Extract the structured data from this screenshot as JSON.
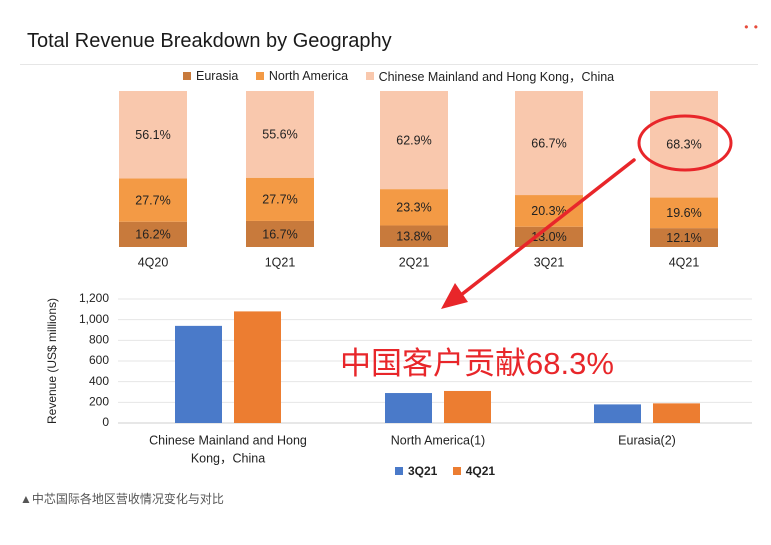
{
  "page": {
    "title": "Total Revenue Breakdown by Geography",
    "callout": "中国客户贡献68.3%",
    "caption": "▲中芯国际各地区营收情况变化与对比",
    "highlight_label": "68.3%"
  },
  "colors": {
    "eurasia": "#c87a3c",
    "north_america": "#f39a45",
    "china": "#f9c8ad",
    "q3_blue": "#4a7ac9",
    "q4_orange": "#ec7d31",
    "annotation_red": "#e8262a"
  },
  "chart_data": [
    {
      "type": "bar",
      "stacked": true,
      "percent": true,
      "categories": [
        "4Q20",
        "1Q21",
        "2Q21",
        "3Q21",
        "4Q21"
      ],
      "legend": [
        "Eurasia",
        "North America",
        "Chinese Mainland and Hong Kong，China"
      ],
      "series": [
        {
          "name": "Eurasia",
          "values": [
            16.2,
            16.7,
            13.8,
            13.0,
            12.1
          ],
          "labels": [
            "16.2%",
            "16.7%",
            "13.8%",
            "13.0%",
            "12.1%"
          ]
        },
        {
          "name": "North America",
          "values": [
            27.7,
            27.7,
            23.3,
            20.3,
            19.6
          ],
          "labels": [
            "27.7%",
            "27.7%",
            "23.3%",
            "20.3%",
            "19.6%"
          ]
        },
        {
          "name": "Chinese Mainland and Hong Kong，China",
          "values": [
            56.1,
            55.6,
            62.9,
            66.7,
            68.3
          ],
          "labels": [
            "56.1%",
            "55.6%",
            "62.9%",
            "66.7%",
            "68.3%"
          ]
        }
      ]
    },
    {
      "type": "bar",
      "categories": [
        "Chinese Mainland and Hong Kong，China",
        "North America(1)",
        "Eurasia(2)"
      ],
      "category_lines": [
        [
          "Chinese Mainland and Hong",
          "Kong，China"
        ],
        [
          "North America(1)"
        ],
        [
          "Eurasia(2)"
        ]
      ],
      "ylabel": "Revenue (US$  millions)",
      "ylim": [
        0,
        1200
      ],
      "yticks": [
        0,
        200,
        400,
        600,
        800,
        1000,
        1200
      ],
      "ytick_labels": [
        "0",
        "200",
        "400",
        "600",
        "800",
        "1,000",
        "1,200"
      ],
      "grid": true,
      "legend_position": "bottom",
      "series": [
        {
          "name": "3Q21",
          "values": [
            940,
            290,
            180
          ]
        },
        {
          "name": "4Q21",
          "values": [
            1080,
            310,
            190
          ]
        }
      ]
    }
  ]
}
